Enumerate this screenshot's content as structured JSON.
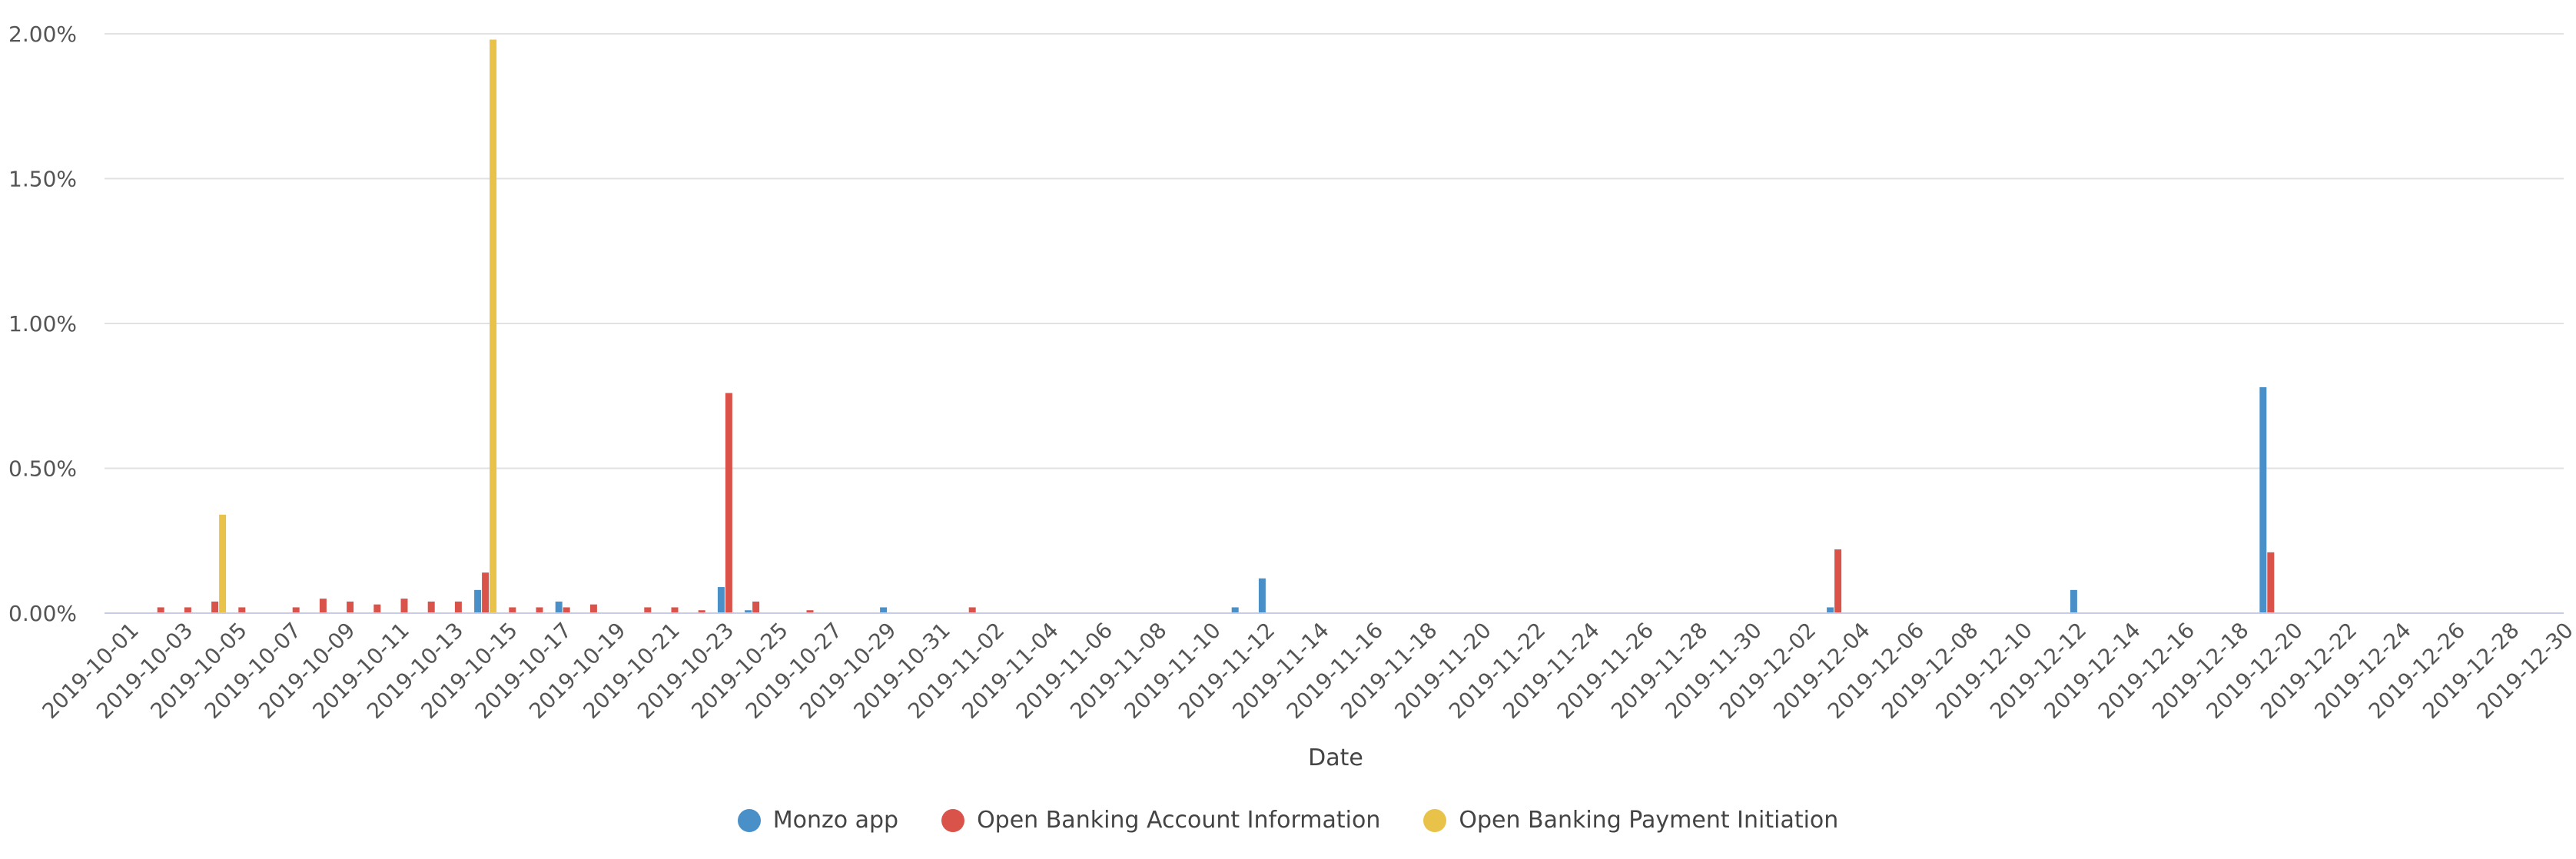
{
  "colors": {
    "monzo": "#4a90c8",
    "ob_account": "#d9534a",
    "ob_payment": "#e9c24a",
    "grid": "#e2e2e2",
    "axis": "#c9cce8"
  },
  "chart_data": {
    "type": "bar",
    "xlabel": "Date",
    "ylabel": "",
    "ylim": [
      0,
      0.02
    ],
    "y_tick_values": [
      0,
      0.005,
      0.01,
      0.015,
      0.02
    ],
    "y_tick_labels": [
      "0.00%",
      "0.50%",
      "1.00%",
      "1.50%",
      "2.00%"
    ],
    "grid": true,
    "legend_position": "bottom-center",
    "x_start": "2019-10-01",
    "x_end": "2019-12-30",
    "x_tick_labels": [
      "2019-10-01",
      "2019-10-03",
      "2019-10-05",
      "2019-10-07",
      "2019-10-09",
      "2019-10-11",
      "2019-10-13",
      "2019-10-15",
      "2019-10-17",
      "2019-10-19",
      "2019-10-21",
      "2019-10-23",
      "2019-10-25",
      "2019-10-27",
      "2019-10-29",
      "2019-10-31",
      "2019-11-02",
      "2019-11-04",
      "2019-11-06",
      "2019-11-08",
      "2019-11-10",
      "2019-11-12",
      "2019-11-14",
      "2019-11-16",
      "2019-11-18",
      "2019-11-20",
      "2019-11-22",
      "2019-11-24",
      "2019-11-26",
      "2019-11-28",
      "2019-11-30",
      "2019-12-02",
      "2019-12-04",
      "2019-12-06",
      "2019-12-08",
      "2019-12-10",
      "2019-12-12",
      "2019-12-14",
      "2019-12-16",
      "2019-12-18",
      "2019-12-20",
      "2019-12-22",
      "2019-12-24",
      "2019-12-26",
      "2019-12-28",
      "2019-12-30"
    ],
    "series": [
      {
        "name": "Monzo app",
        "color_key": "monzo",
        "points": [
          {
            "date": "2019-10-14",
            "value": 0.0008
          },
          {
            "date": "2019-10-17",
            "value": 0.0004
          },
          {
            "date": "2019-10-23",
            "value": 0.0009
          },
          {
            "date": "2019-10-24",
            "value": 0.0001
          },
          {
            "date": "2019-10-29",
            "value": 0.0002
          },
          {
            "date": "2019-11-11",
            "value": 0.0002
          },
          {
            "date": "2019-11-12",
            "value": 0.0012
          },
          {
            "date": "2019-12-03",
            "value": 0.0002
          },
          {
            "date": "2019-12-12",
            "value": 0.0008
          },
          {
            "date": "2019-12-19",
            "value": 0.0078
          }
        ]
      },
      {
        "name": "Open Banking Account Information",
        "color_key": "ob_account",
        "points": [
          {
            "date": "2019-10-02",
            "value": 0.0002
          },
          {
            "date": "2019-10-03",
            "value": 0.0002
          },
          {
            "date": "2019-10-04",
            "value": 0.0004
          },
          {
            "date": "2019-10-05",
            "value": 0.0002
          },
          {
            "date": "2019-10-07",
            "value": 0.0002
          },
          {
            "date": "2019-10-08",
            "value": 0.0005
          },
          {
            "date": "2019-10-09",
            "value": 0.0004
          },
          {
            "date": "2019-10-10",
            "value": 0.0003
          },
          {
            "date": "2019-10-11",
            "value": 0.0005
          },
          {
            "date": "2019-10-12",
            "value": 0.0004
          },
          {
            "date": "2019-10-13",
            "value": 0.0004
          },
          {
            "date": "2019-10-14",
            "value": 0.0014
          },
          {
            "date": "2019-10-15",
            "value": 0.0002
          },
          {
            "date": "2019-10-16",
            "value": 0.0002
          },
          {
            "date": "2019-10-17",
            "value": 0.0002
          },
          {
            "date": "2019-10-18",
            "value": 0.0003
          },
          {
            "date": "2019-10-20",
            "value": 0.0002
          },
          {
            "date": "2019-10-21",
            "value": 0.0002
          },
          {
            "date": "2019-10-22",
            "value": 0.0001
          },
          {
            "date": "2019-10-23",
            "value": 0.0076
          },
          {
            "date": "2019-10-24",
            "value": 0.0004
          },
          {
            "date": "2019-10-26",
            "value": 0.0001
          },
          {
            "date": "2019-11-01",
            "value": 0.0002
          },
          {
            "date": "2019-12-03",
            "value": 0.0022
          },
          {
            "date": "2019-12-19",
            "value": 0.0021
          }
        ]
      },
      {
        "name": "Open Banking Payment Initiation",
        "color_key": "ob_payment",
        "points": [
          {
            "date": "2019-10-04",
            "value": 0.0034
          },
          {
            "date": "2019-10-14",
            "value": 0.0198
          }
        ]
      }
    ]
  }
}
